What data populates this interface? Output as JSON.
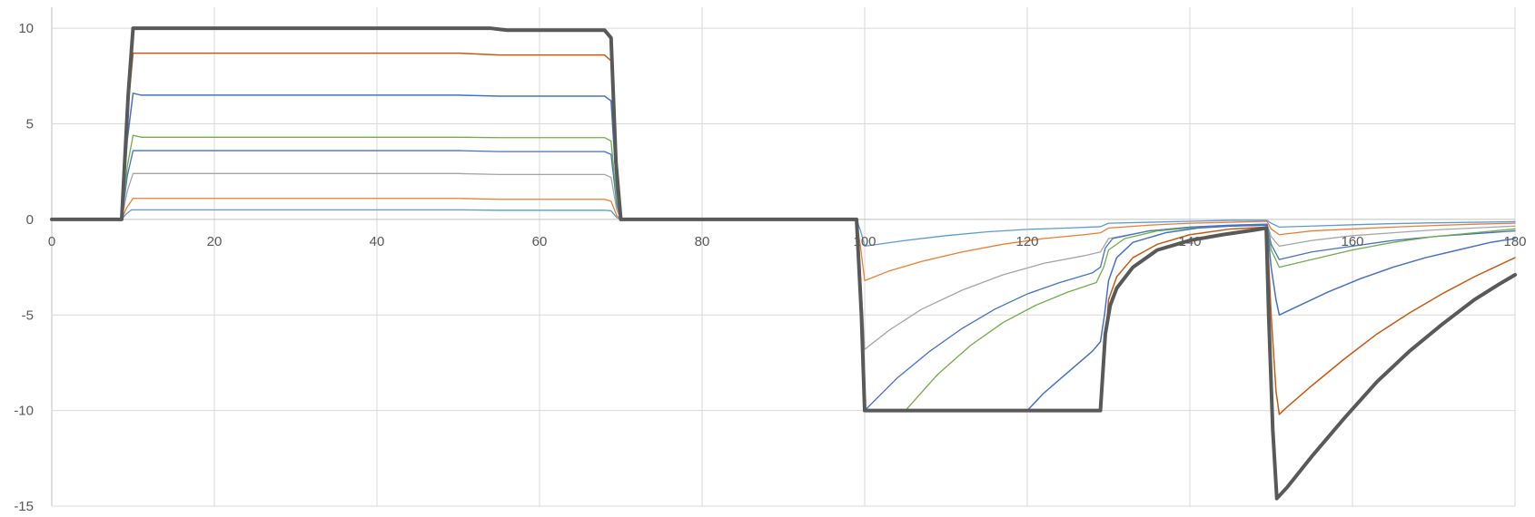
{
  "chart_data": {
    "type": "line",
    "title": "",
    "xlabel": "",
    "ylabel": "",
    "xlim": [
      0,
      180
    ],
    "ylim": [
      -15,
      10
    ],
    "x_ticks": [
      0,
      20,
      40,
      60,
      80,
      100,
      120,
      140,
      160,
      180
    ],
    "y_ticks": [
      10,
      5,
      0,
      -5,
      -10,
      -15
    ],
    "x_tick_labels": [
      "0",
      "20",
      "40",
      "60",
      "80",
      "100",
      "120",
      "140",
      "160",
      "180"
    ],
    "y_tick_labels": [
      "10",
      "5",
      "0",
      "-5",
      "-10",
      "-15"
    ],
    "grid": true,
    "legend": "none",
    "series": [
      {
        "color": "#5b9bd5",
        "width": 1.3,
        "points": [
          [
            0,
            0
          ],
          [
            8.6,
            0
          ],
          [
            9.2,
            0.3
          ],
          [
            9.8,
            0.5
          ],
          [
            50,
            0.5
          ],
          [
            55,
            0.48
          ],
          [
            68,
            0.48
          ],
          [
            68.8,
            0.45
          ],
          [
            69.5,
            0.1
          ],
          [
            70,
            0
          ],
          [
            99,
            0
          ],
          [
            99.5,
            -0.6
          ],
          [
            100,
            -1.4
          ],
          [
            105,
            -1.1
          ],
          [
            110,
            -0.85
          ],
          [
            115,
            -0.65
          ],
          [
            120,
            -0.52
          ],
          [
            125,
            -0.45
          ],
          [
            129,
            -0.38
          ],
          [
            130,
            -0.2
          ],
          [
            135,
            -0.15
          ],
          [
            140,
            -0.1
          ],
          [
            145,
            -0.05
          ],
          [
            149.5,
            -0.05
          ],
          [
            150,
            -0.2
          ],
          [
            151,
            -0.4
          ],
          [
            155,
            -0.35
          ],
          [
            160,
            -0.28
          ],
          [
            165,
            -0.22
          ],
          [
            170,
            -0.18
          ],
          [
            175,
            -0.15
          ],
          [
            180,
            -0.12
          ]
        ]
      },
      {
        "color": "#ed7d31",
        "width": 1.3,
        "points": [
          [
            0,
            0
          ],
          [
            8.6,
            0
          ],
          [
            9.2,
            0.6
          ],
          [
            10,
            1.1
          ],
          [
            11,
            1.1
          ],
          [
            50,
            1.1
          ],
          [
            55,
            1.05
          ],
          [
            68,
            1.05
          ],
          [
            68.8,
            0.95
          ],
          [
            69.5,
            0.2
          ],
          [
            70,
            0
          ],
          [
            99,
            0
          ],
          [
            99.5,
            -1.5
          ],
          [
            100,
            -3.2
          ],
          [
            103,
            -2.7
          ],
          [
            107,
            -2.2
          ],
          [
            112,
            -1.7
          ],
          [
            117,
            -1.3
          ],
          [
            122,
            -1.0
          ],
          [
            127,
            -0.8
          ],
          [
            129,
            -0.7
          ],
          [
            130,
            -0.45
          ],
          [
            135,
            -0.3
          ],
          [
            140,
            -0.2
          ],
          [
            145,
            -0.15
          ],
          [
            149.5,
            -0.1
          ],
          [
            150,
            -0.5
          ],
          [
            151,
            -0.8
          ],
          [
            155,
            -0.6
          ],
          [
            160,
            -0.5
          ],
          [
            165,
            -0.4
          ],
          [
            170,
            -0.32
          ],
          [
            175,
            -0.25
          ],
          [
            180,
            -0.2
          ]
        ]
      },
      {
        "color": "#a5a5a5",
        "width": 1.3,
        "points": [
          [
            0,
            0
          ],
          [
            8.6,
            0
          ],
          [
            9.3,
            1.5
          ],
          [
            10,
            2.4
          ],
          [
            11,
            2.4
          ],
          [
            50,
            2.4
          ],
          [
            55,
            2.35
          ],
          [
            68,
            2.35
          ],
          [
            68.8,
            2.2
          ],
          [
            69.5,
            0.5
          ],
          [
            70,
            0
          ],
          [
            99,
            0
          ],
          [
            99.5,
            -3
          ],
          [
            100,
            -6.8
          ],
          [
            103,
            -5.8
          ],
          [
            107,
            -4.7
          ],
          [
            112,
            -3.7
          ],
          [
            117,
            -2.9
          ],
          [
            122,
            -2.3
          ],
          [
            127,
            -1.9
          ],
          [
            129,
            -1.7
          ],
          [
            130,
            -1.0
          ],
          [
            135,
            -0.6
          ],
          [
            140,
            -0.4
          ],
          [
            145,
            -0.3
          ],
          [
            149.5,
            -0.25
          ],
          [
            150,
            -0.9
          ],
          [
            151,
            -1.4
          ],
          [
            155,
            -1.1
          ],
          [
            160,
            -0.85
          ],
          [
            165,
            -0.7
          ],
          [
            170,
            -0.55
          ],
          [
            175,
            -0.45
          ],
          [
            180,
            -0.35
          ]
        ]
      },
      {
        "color": "#4472c4",
        "width": 1.3,
        "points": [
          [
            0,
            0
          ],
          [
            8.6,
            0
          ],
          [
            9.3,
            2.3
          ],
          [
            10,
            3.6
          ],
          [
            11,
            3.6
          ],
          [
            50,
            3.6
          ],
          [
            55,
            3.55
          ],
          [
            68,
            3.55
          ],
          [
            68.8,
            3.4
          ],
          [
            69.5,
            0.8
          ],
          [
            70,
            0
          ],
          [
            99,
            0
          ],
          [
            99.5,
            -5
          ],
          [
            100,
            -10
          ],
          [
            104,
            -8.3
          ],
          [
            108,
            -6.9
          ],
          [
            112,
            -5.7
          ],
          [
            116,
            -4.7
          ],
          [
            120,
            -3.9
          ],
          [
            124,
            -3.3
          ],
          [
            128,
            -2.8
          ],
          [
            129,
            -2.5
          ],
          [
            129.6,
            -1.5
          ],
          [
            130.5,
            -1.0
          ],
          [
            135,
            -0.6
          ],
          [
            140,
            -0.4
          ],
          [
            145,
            -0.3
          ],
          [
            149.5,
            -0.25
          ],
          [
            150,
            -1.3
          ],
          [
            151,
            -2.1
          ],
          [
            155,
            -1.7
          ],
          [
            160,
            -1.4
          ],
          [
            165,
            -1.1
          ],
          [
            170,
            -0.9
          ],
          [
            175,
            -0.75
          ],
          [
            180,
            -0.6
          ]
        ]
      },
      {
        "color": "#70ad47",
        "width": 1.3,
        "points": [
          [
            0,
            0
          ],
          [
            8.6,
            0
          ],
          [
            9.3,
            2.8
          ],
          [
            10,
            4.4
          ],
          [
            11,
            4.3
          ],
          [
            50,
            4.3
          ],
          [
            55,
            4.28
          ],
          [
            68,
            4.28
          ],
          [
            68.8,
            4.1
          ],
          [
            69.5,
            1.0
          ],
          [
            70,
            0
          ],
          [
            99,
            0
          ],
          [
            99.5,
            -5
          ],
          [
            100,
            -10
          ],
          [
            105,
            -10
          ],
          [
            109,
            -8.1
          ],
          [
            113,
            -6.6
          ],
          [
            117,
            -5.4
          ],
          [
            121,
            -4.5
          ],
          [
            125,
            -3.8
          ],
          [
            128.5,
            -3.3
          ],
          [
            129.4,
            -2.5
          ],
          [
            130,
            -1.6
          ],
          [
            132,
            -1.0
          ],
          [
            136,
            -0.6
          ],
          [
            140,
            -0.45
          ],
          [
            145,
            -0.35
          ],
          [
            149.5,
            -0.3
          ],
          [
            150,
            -1.6
          ],
          [
            151,
            -2.5
          ],
          [
            155,
            -2.1
          ],
          [
            160,
            -1.6
          ],
          [
            165,
            -1.2
          ],
          [
            170,
            -0.9
          ],
          [
            175,
            -0.7
          ],
          [
            180,
            -0.5
          ]
        ]
      },
      {
        "color": "#4472c4",
        "width": 1.5,
        "points": [
          [
            0,
            0
          ],
          [
            8.6,
            0
          ],
          [
            9.3,
            4.2
          ],
          [
            10,
            6.6
          ],
          [
            11,
            6.5
          ],
          [
            50,
            6.5
          ],
          [
            55,
            6.45
          ],
          [
            68,
            6.45
          ],
          [
            68.8,
            6.2
          ],
          [
            69.5,
            1.5
          ],
          [
            70,
            0
          ],
          [
            99,
            0
          ],
          [
            99.5,
            -5
          ],
          [
            100,
            -10
          ],
          [
            120,
            -10
          ],
          [
            122,
            -9.1
          ],
          [
            125,
            -8.0
          ],
          [
            128,
            -6.9
          ],
          [
            129,
            -6.4
          ],
          [
            129.5,
            -5
          ],
          [
            130,
            -3.2
          ],
          [
            131,
            -2.0
          ],
          [
            133,
            -1.2
          ],
          [
            137,
            -0.7
          ],
          [
            141,
            -0.45
          ],
          [
            145,
            -0.35
          ],
          [
            149.5,
            -0.3
          ],
          [
            150,
            -2.5
          ],
          [
            150.6,
            -4.2
          ],
          [
            151,
            -5.0
          ],
          [
            153,
            -4.6
          ],
          [
            157,
            -3.8
          ],
          [
            161,
            -3.1
          ],
          [
            165,
            -2.5
          ],
          [
            169,
            -2.0
          ],
          [
            173,
            -1.6
          ],
          [
            177,
            -1.2
          ],
          [
            180,
            -1.0
          ]
        ]
      },
      {
        "color": "#c55a11",
        "width": 1.5,
        "points": [
          [
            0,
            0
          ],
          [
            8.6,
            0
          ],
          [
            9.3,
            5.5
          ],
          [
            10,
            8.7
          ],
          [
            11,
            8.7
          ],
          [
            50,
            8.7
          ],
          [
            55,
            8.6
          ],
          [
            68,
            8.6
          ],
          [
            68.8,
            8.3
          ],
          [
            69.5,
            2.0
          ],
          [
            70,
            0
          ],
          [
            99,
            0
          ],
          [
            99.5,
            -5
          ],
          [
            100,
            -10
          ],
          [
            129,
            -10
          ],
          [
            129.5,
            -7
          ],
          [
            130,
            -4.2
          ],
          [
            131,
            -3.0
          ],
          [
            133,
            -2.0
          ],
          [
            136,
            -1.3
          ],
          [
            140,
            -0.8
          ],
          [
            145,
            -0.5
          ],
          [
            149.5,
            -0.4
          ],
          [
            150,
            -5
          ],
          [
            150.6,
            -9
          ],
          [
            151,
            -10.2
          ],
          [
            152,
            -9.8
          ],
          [
            155,
            -8.7
          ],
          [
            159,
            -7.3
          ],
          [
            163,
            -6.0
          ],
          [
            167,
            -4.9
          ],
          [
            171,
            -3.9
          ],
          [
            175,
            -3.0
          ],
          [
            178,
            -2.4
          ],
          [
            180,
            -2.0
          ]
        ]
      },
      {
        "color": "#595959",
        "width": 4,
        "points": [
          [
            0,
            0
          ],
          [
            8.6,
            0
          ],
          [
            9.4,
            6.5
          ],
          [
            10,
            10
          ],
          [
            11,
            10
          ],
          [
            50,
            10
          ],
          [
            54,
            10
          ],
          [
            56,
            9.9
          ],
          [
            68,
            9.9
          ],
          [
            68.8,
            9.5
          ],
          [
            69.4,
            3
          ],
          [
            70,
            0
          ],
          [
            99,
            0
          ],
          [
            99.6,
            -5
          ],
          [
            100,
            -10
          ],
          [
            129,
            -10
          ],
          [
            129.6,
            -6
          ],
          [
            130.2,
            -4.5
          ],
          [
            131,
            -3.6
          ],
          [
            133,
            -2.5
          ],
          [
            136,
            -1.6
          ],
          [
            140,
            -1.1
          ],
          [
            144,
            -0.8
          ],
          [
            148,
            -0.55
          ],
          [
            149.4,
            -0.45
          ],
          [
            149.7,
            -5
          ],
          [
            150.2,
            -11
          ],
          [
            150.7,
            -14.6
          ],
          [
            152,
            -14.0
          ],
          [
            155,
            -12.4
          ],
          [
            159,
            -10.4
          ],
          [
            163,
            -8.5
          ],
          [
            167,
            -6.9
          ],
          [
            171,
            -5.5
          ],
          [
            175,
            -4.2
          ],
          [
            178,
            -3.4
          ],
          [
            180,
            -2.9
          ]
        ]
      }
    ]
  }
}
